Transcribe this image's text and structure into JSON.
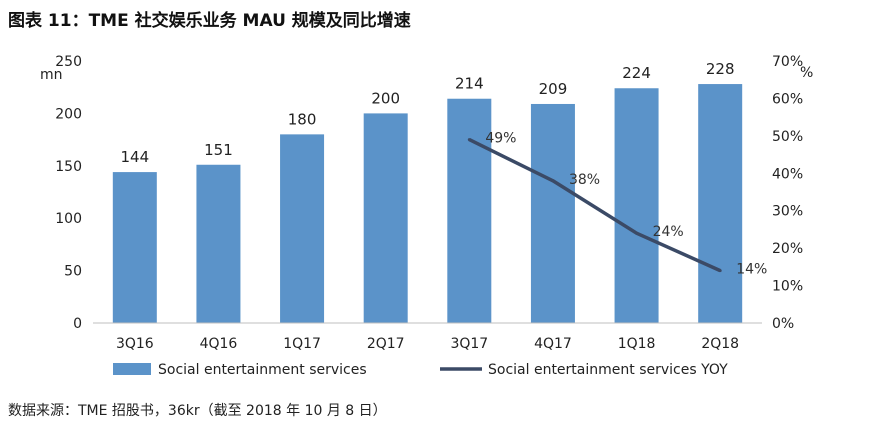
{
  "title": "图表 11：TME 社交娱乐业务 MAU 规模及同比增速",
  "source": "数据来源：TME 招股书，36kr（截至 2018 年 10 月 8 日）",
  "chart_data": {
    "type": "bar",
    "categories": [
      "3Q16",
      "4Q16",
      "1Q17",
      "2Q17",
      "3Q17",
      "4Q17",
      "1Q18",
      "2Q18"
    ],
    "series": [
      {
        "name": "Social entertainment services",
        "type": "bar",
        "axis": "left",
        "values": [
          144,
          151,
          180,
          200,
          214,
          209,
          224,
          228
        ],
        "labels": [
          "144",
          "151",
          "180",
          "200",
          "214",
          "209",
          "224",
          "228"
        ],
        "color": "#5b93c9"
      },
      {
        "name": "Social entertainment services YOY",
        "type": "line",
        "axis": "right",
        "values": [
          null,
          null,
          null,
          null,
          49,
          38,
          24,
          14
        ],
        "labels": [
          "",
          "",
          "",
          "",
          "49%",
          "38%",
          "24%",
          "14%"
        ],
        "color": "#3b4a66"
      }
    ],
    "y_left": {
      "unit": "mn",
      "ylim": [
        0,
        250
      ],
      "ticks": [
        "0",
        "50",
        "100",
        "150",
        "200",
        "250"
      ]
    },
    "y_right": {
      "unit": "%",
      "ylim": [
        0,
        70
      ],
      "ticks": [
        "0%",
        "10%",
        "20%",
        "30%",
        "40%",
        "50%",
        "60%",
        "70%"
      ]
    },
    "grid": false,
    "legend": "bottom"
  }
}
